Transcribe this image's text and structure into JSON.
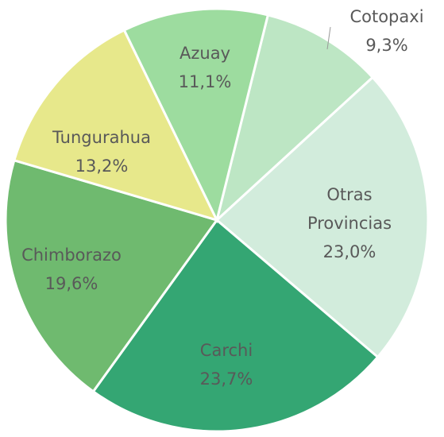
{
  "chart_data": {
    "type": "pie",
    "categories": [
      "Cotopaxi",
      "Otras Provincias",
      "Carchi",
      "Chimborazo",
      "Tungurahua",
      "Azuay"
    ],
    "values": [
      9.3,
      23.0,
      23.7,
      19.6,
      13.2,
      11.1
    ],
    "value_labels": [
      "9,3%",
      "23,0%",
      "23,7%",
      "19,6%",
      "13,2%",
      "11,1%"
    ],
    "colors": [
      "#bde6c4",
      "#d2ecdc",
      "#34a673",
      "#6fba6f",
      "#e7e88b",
      "#9ddc9f"
    ]
  }
}
